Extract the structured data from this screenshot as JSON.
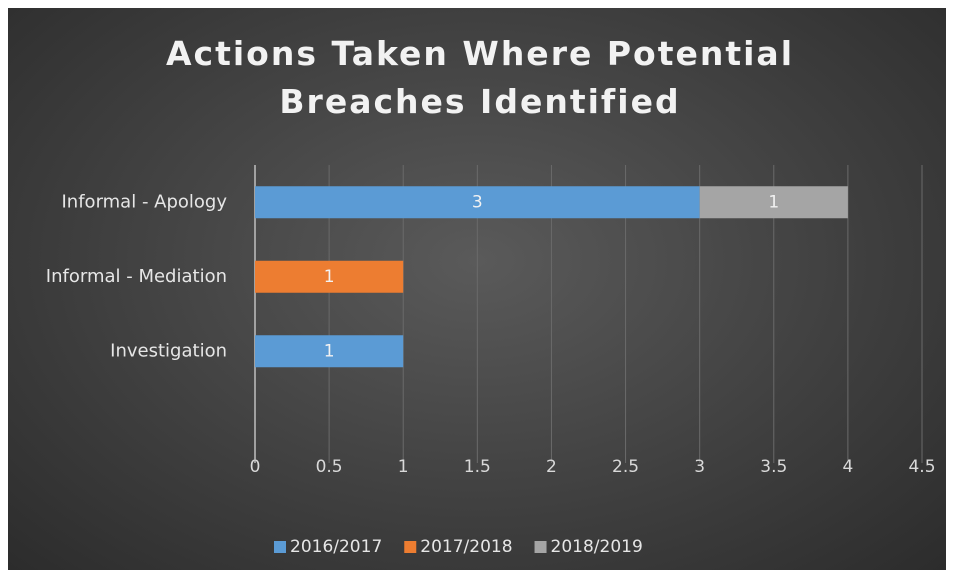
{
  "chart_data": {
    "type": "stacked-barh",
    "title": "Actions Taken Where Potential Breaches Identified",
    "categories": [
      "Informal - Apology",
      "Informal - Mediation",
      "Investigation",
      null
    ],
    "series": [
      {
        "name": "2016/2017",
        "color": "#5b9bd5",
        "values": [
          3,
          null,
          1,
          null
        ]
      },
      {
        "name": "2017/2018",
        "color": "#ed7d31",
        "values": [
          null,
          1,
          null,
          null
        ]
      },
      {
        "name": "2018/2019",
        "color": "#a5a5a5",
        "values": [
          1,
          null,
          null,
          null
        ]
      }
    ],
    "xlim": [
      0,
      4.5
    ],
    "xticks": [
      0,
      0.5,
      1,
      1.5,
      2,
      2.5,
      3,
      3.5,
      4,
      4.5
    ],
    "grid": true,
    "legend": "bottom"
  }
}
